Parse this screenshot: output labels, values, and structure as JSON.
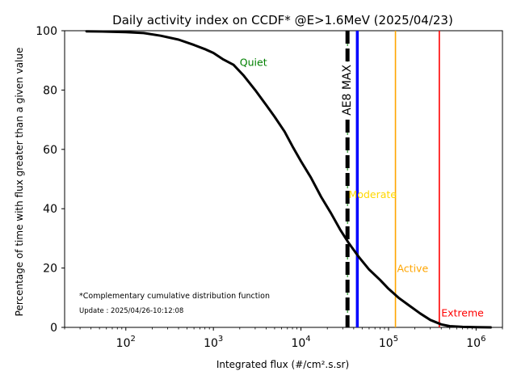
{
  "chart_data": {
    "type": "line",
    "title": "Daily activity index on CCDF* @E>1.6MeV (2025/04/23)",
    "xlabel": "Integrated flux (#/cm².s.sr)",
    "ylabel": "Percentage of time with flux greater than a given value",
    "xscale": "log",
    "xlim": [
      20,
      2000000
    ],
    "ylim": [
      0,
      100
    ],
    "yticks": [
      0,
      20,
      40,
      60,
      80,
      100
    ],
    "ytick_labels": [
      "0",
      "20",
      "40",
      "60",
      "80",
      "100"
    ],
    "xticks": [
      100,
      1000,
      10000,
      100000,
      1000000
    ],
    "xtick_labels": [
      {
        "base": "10",
        "exp": "2"
      },
      {
        "base": "10",
        "exp": "3"
      },
      {
        "base": "10",
        "exp": "4"
      },
      {
        "base": "10",
        "exp": "5"
      },
      {
        "base": "10",
        "exp": "6"
      }
    ],
    "series": [
      {
        "color": "#000000",
        "x": [
          35,
          60,
          100,
          160,
          250,
          400,
          600,
          800,
          1000,
          1300,
          1700,
          2200,
          3000,
          4000,
          5000,
          6500,
          8000,
          10000,
          13000,
          17000,
          22000,
          28000,
          35000,
          45000,
          60000,
          80000,
          100000,
          130000,
          170000,
          230000,
          300000,
          400000,
          500000,
          700000,
          1000000,
          1500000
        ],
        "y": [
          99.8,
          99.7,
          99.5,
          99.2,
          98.3,
          97.0,
          95.2,
          93.8,
          92.5,
          90.3,
          88.5,
          85.0,
          80.0,
          75.0,
          71.0,
          66.0,
          61.0,
          56.0,
          50.5,
          44.0,
          38.5,
          33.0,
          28.5,
          24.0,
          19.5,
          16.0,
          13.0,
          10.0,
          7.5,
          4.7,
          2.5,
          1.0,
          0.4,
          0.15,
          0.05,
          0.0
        ]
      }
    ],
    "vlines": [
      {
        "name": "AE8 MAX",
        "x": 34000,
        "color": "#000000",
        "style": "dashed-thick"
      },
      {
        "x": 44000,
        "color": "#0000ff",
        "style": "solid"
      },
      {
        "x": 120000,
        "color": "#ffa500",
        "style": "solid"
      },
      {
        "x": 380000,
        "color": "#ff0000",
        "style": "solid"
      }
    ],
    "region_labels": [
      {
        "text": "Quiet",
        "color": "#008000",
        "x": 2000,
        "y": 89.5
      },
      {
        "text": "Moderate",
        "color": "#ffd700",
        "x": 35000,
        "y": 45
      },
      {
        "text": "Active",
        "color": "#ffa500",
        "x": 125000,
        "y": 20
      },
      {
        "text": "Extreme",
        "color": "#ff0000",
        "x": 400000,
        "y": 5
      }
    ],
    "vline_label": "AE8 MAX",
    "notes": [
      "*Complementary cumulative distribution function",
      "Update : 2025/04/26-10:12:08"
    ],
    "grid": false
  }
}
